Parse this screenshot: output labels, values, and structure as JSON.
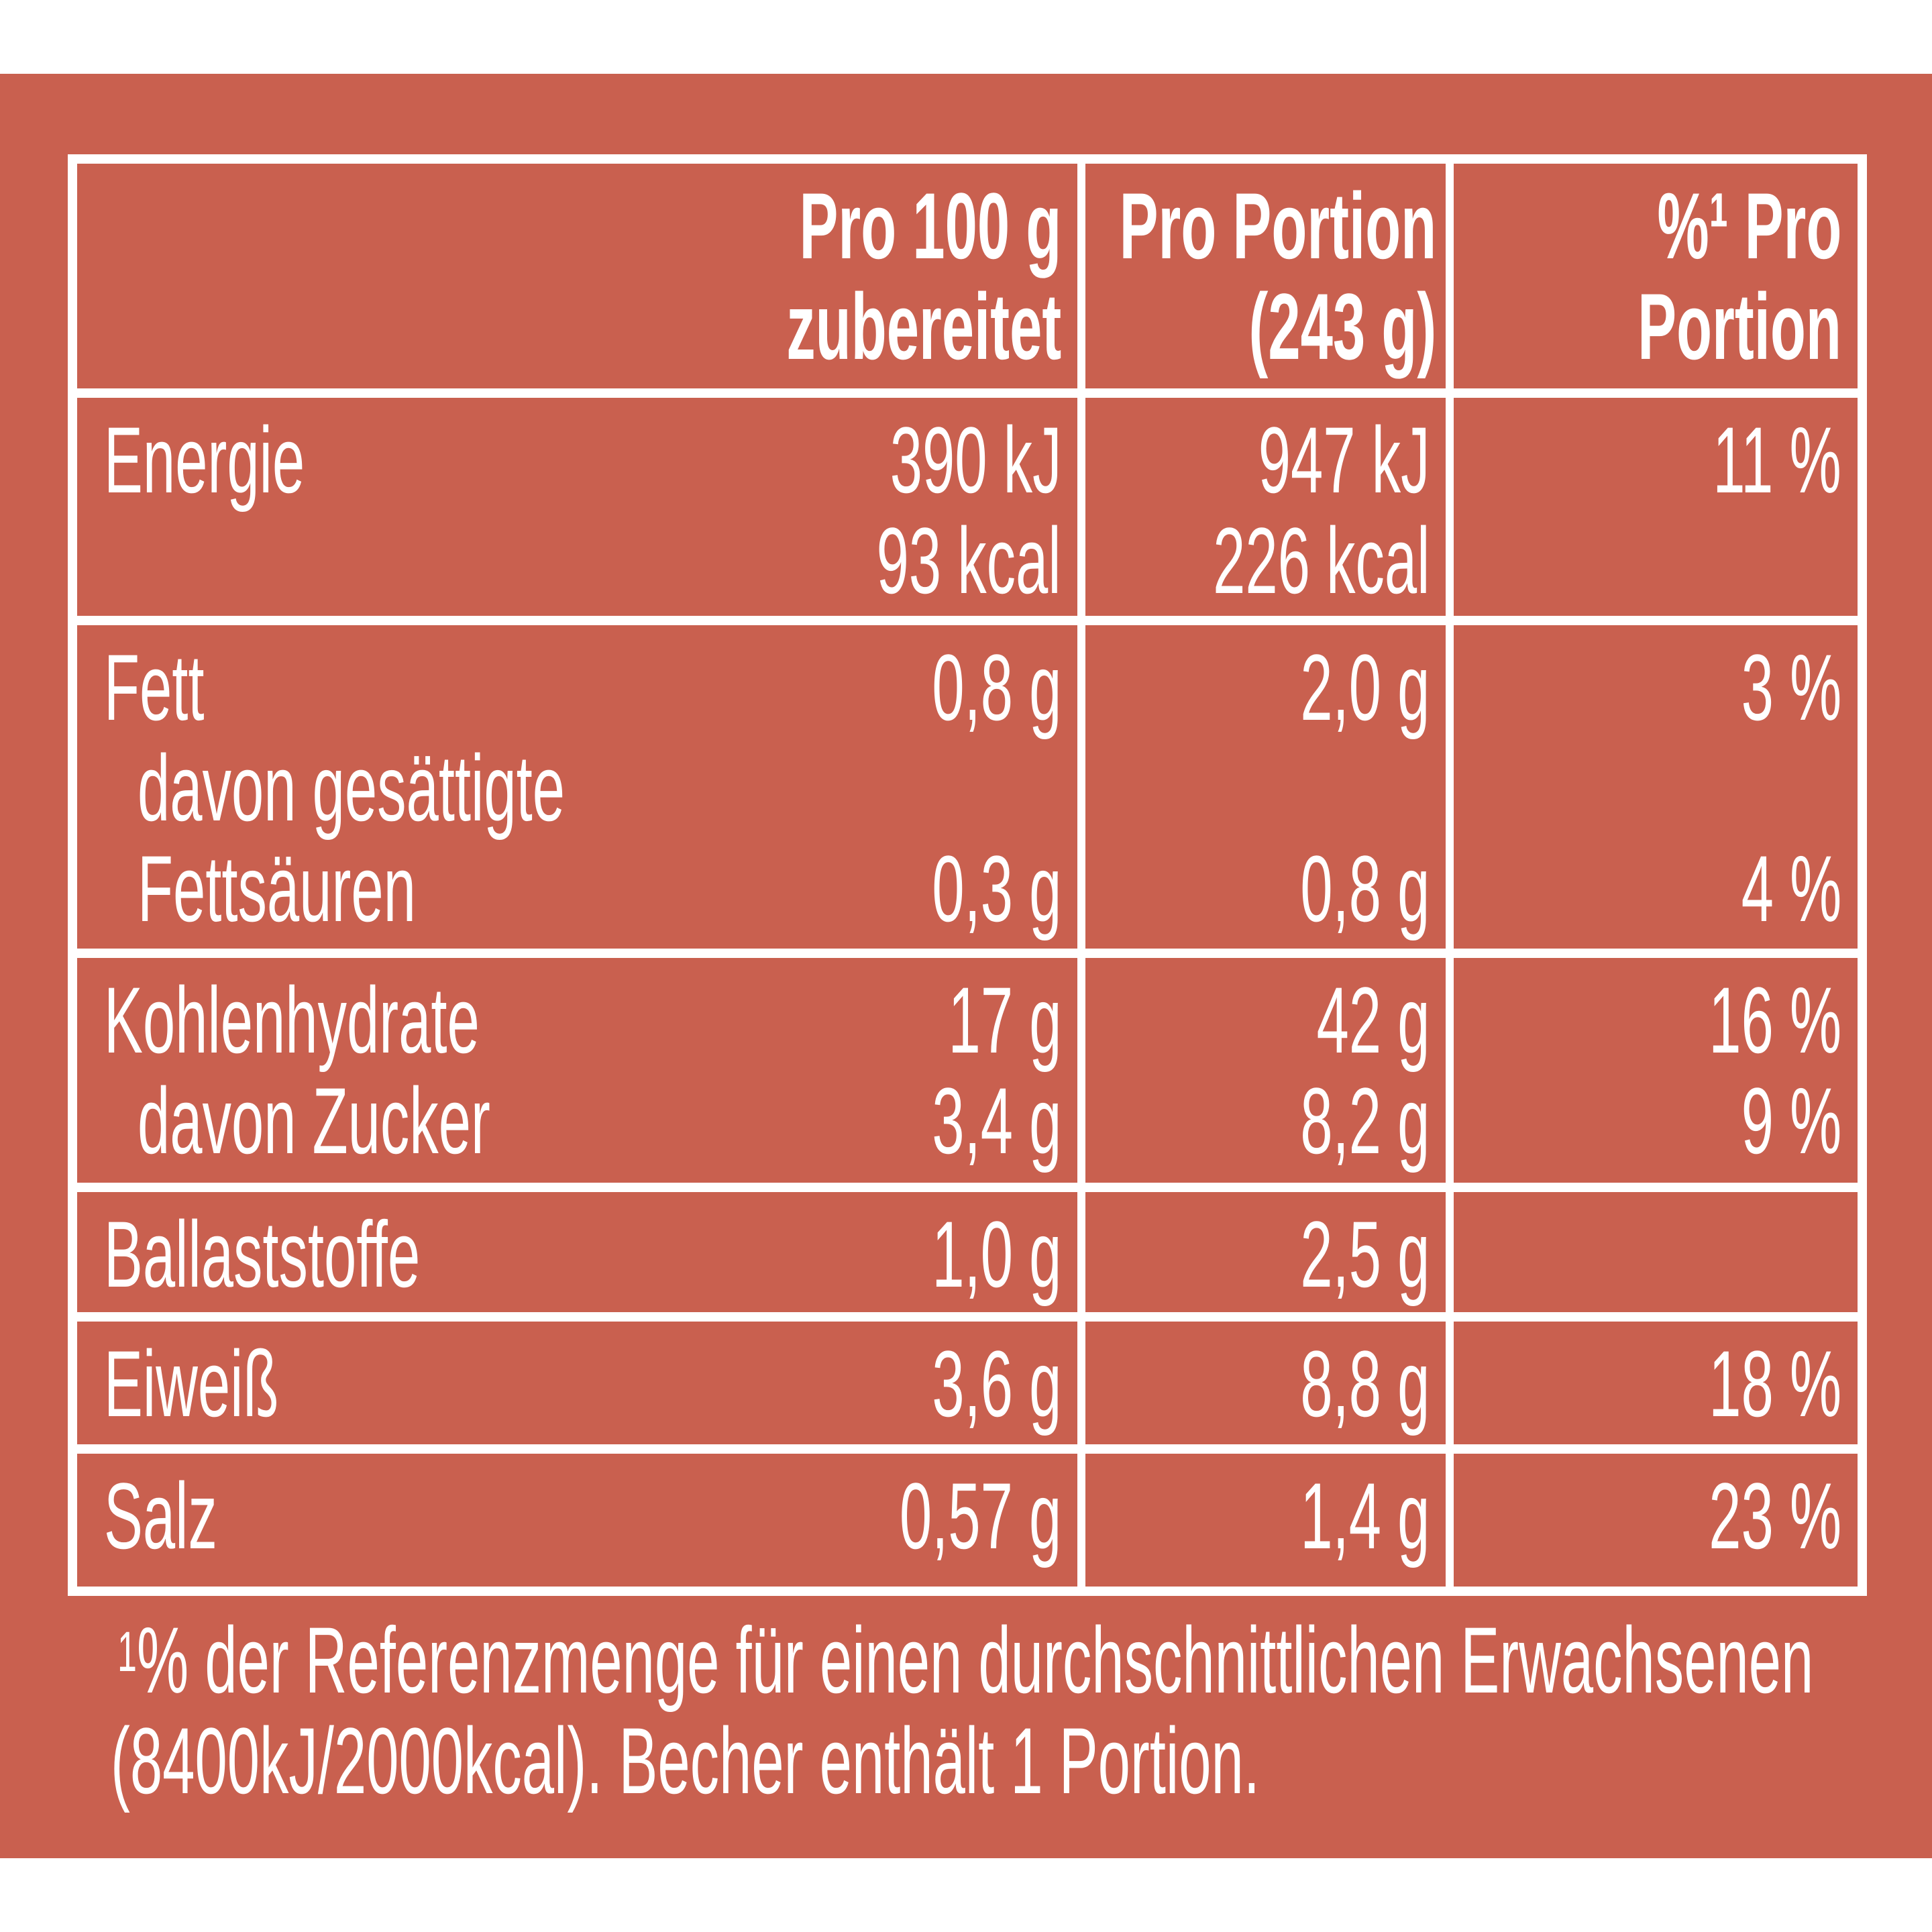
{
  "header": {
    "col1": [
      "Pro 100 g",
      "zubereitet"
    ],
    "col2": [
      "Pro Portion",
      "(243 g)"
    ],
    "col3_sup": "%¹",
    "col3": [
      "Pro",
      "Portion"
    ]
  },
  "rows": [
    {
      "label": [
        "Energie",
        ""
      ],
      "per100": [
        "390 kJ",
        "93 kcal"
      ],
      "portion": [
        "947 kJ",
        "226 kcal"
      ],
      "pct": [
        "11 %",
        ""
      ]
    },
    {
      "label": [
        "Fett",
        "davon gesättigte",
        "Fettsäuren"
      ],
      "per100": [
        "0,8 g",
        "",
        "0,3 g"
      ],
      "portion": [
        "2,0 g",
        "",
        "0,8 g"
      ],
      "pct": [
        "3 %",
        "",
        "4 %"
      ]
    },
    {
      "label": [
        "Kohlenhydrate",
        "davon Zucker"
      ],
      "per100": [
        "17 g",
        "3,4 g"
      ],
      "portion": [
        "42 g",
        "8,2 g"
      ],
      "pct": [
        "16 %",
        "9 %"
      ]
    },
    {
      "label": [
        "Ballaststoffe"
      ],
      "per100": [
        "1,0 g"
      ],
      "portion": [
        "2,5 g"
      ],
      "pct": [
        ""
      ]
    },
    {
      "label": [
        "Eiweiß"
      ],
      "per100": [
        "3,6 g"
      ],
      "portion": [
        "8,8 g"
      ],
      "pct": [
        "18 %"
      ]
    },
    {
      "label": [
        "Salz"
      ],
      "per100": [
        "0,57 g"
      ],
      "portion": [
        "1,4 g"
      ],
      "pct": [
        "23 %"
      ]
    }
  ],
  "footnote": {
    "marker": "1",
    "line1": "% der Referenzmenge für einen durchschnittlichen Erwachsenen",
    "line2": "(8400kJ/2000kcal). Becher enthält 1 Portion."
  },
  "colors": {
    "background": "#C9604F",
    "lines": "#FFFFFF"
  }
}
